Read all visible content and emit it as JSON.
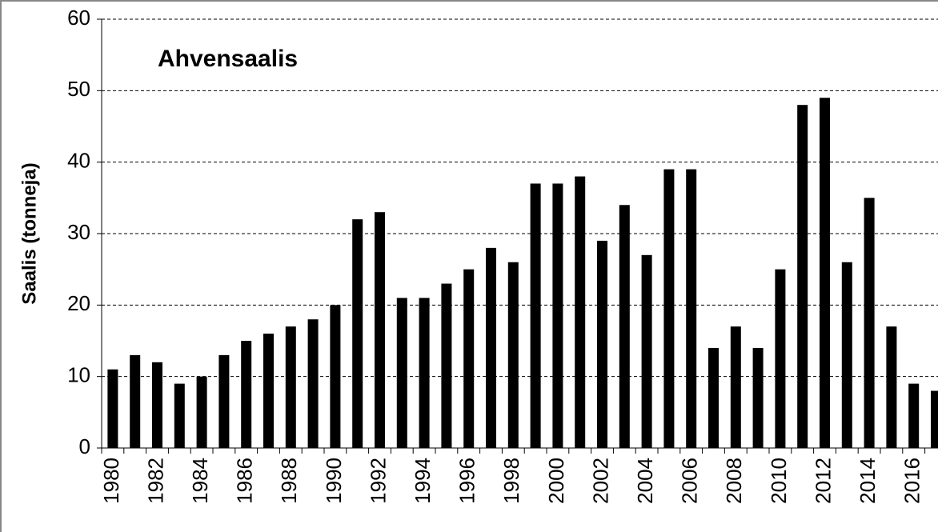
{
  "chart_data": {
    "type": "bar",
    "title": "Ahvensaalis",
    "y_label": "Saalis (tonneja)",
    "categories": [
      "1980",
      null,
      "1982",
      null,
      "1984",
      null,
      "1986",
      null,
      "1988",
      null,
      "1990",
      null,
      "1992",
      null,
      "1994",
      null,
      "1996",
      null,
      "1998",
      null,
      "2000",
      null,
      "2002",
      null,
      "2004",
      null,
      "2006",
      null,
      "2008",
      null,
      "2010",
      null,
      "2012",
      null,
      "2014",
      null,
      "2016",
      null
    ],
    "values": [
      11,
      13,
      12,
      9,
      10,
      13,
      15,
      16,
      17,
      18,
      20,
      32,
      33,
      21,
      21,
      23,
      25,
      28,
      26,
      37,
      37,
      38,
      29,
      34,
      27,
      39,
      39,
      14,
      17,
      14,
      25,
      48,
      49,
      26,
      35,
      17,
      9,
      8
    ],
    "color": "#000000",
    "ylim": [
      0,
      60
    ],
    "yticks": [
      0,
      10,
      20,
      30,
      40,
      50,
      60
    ],
    "grid": true
  }
}
